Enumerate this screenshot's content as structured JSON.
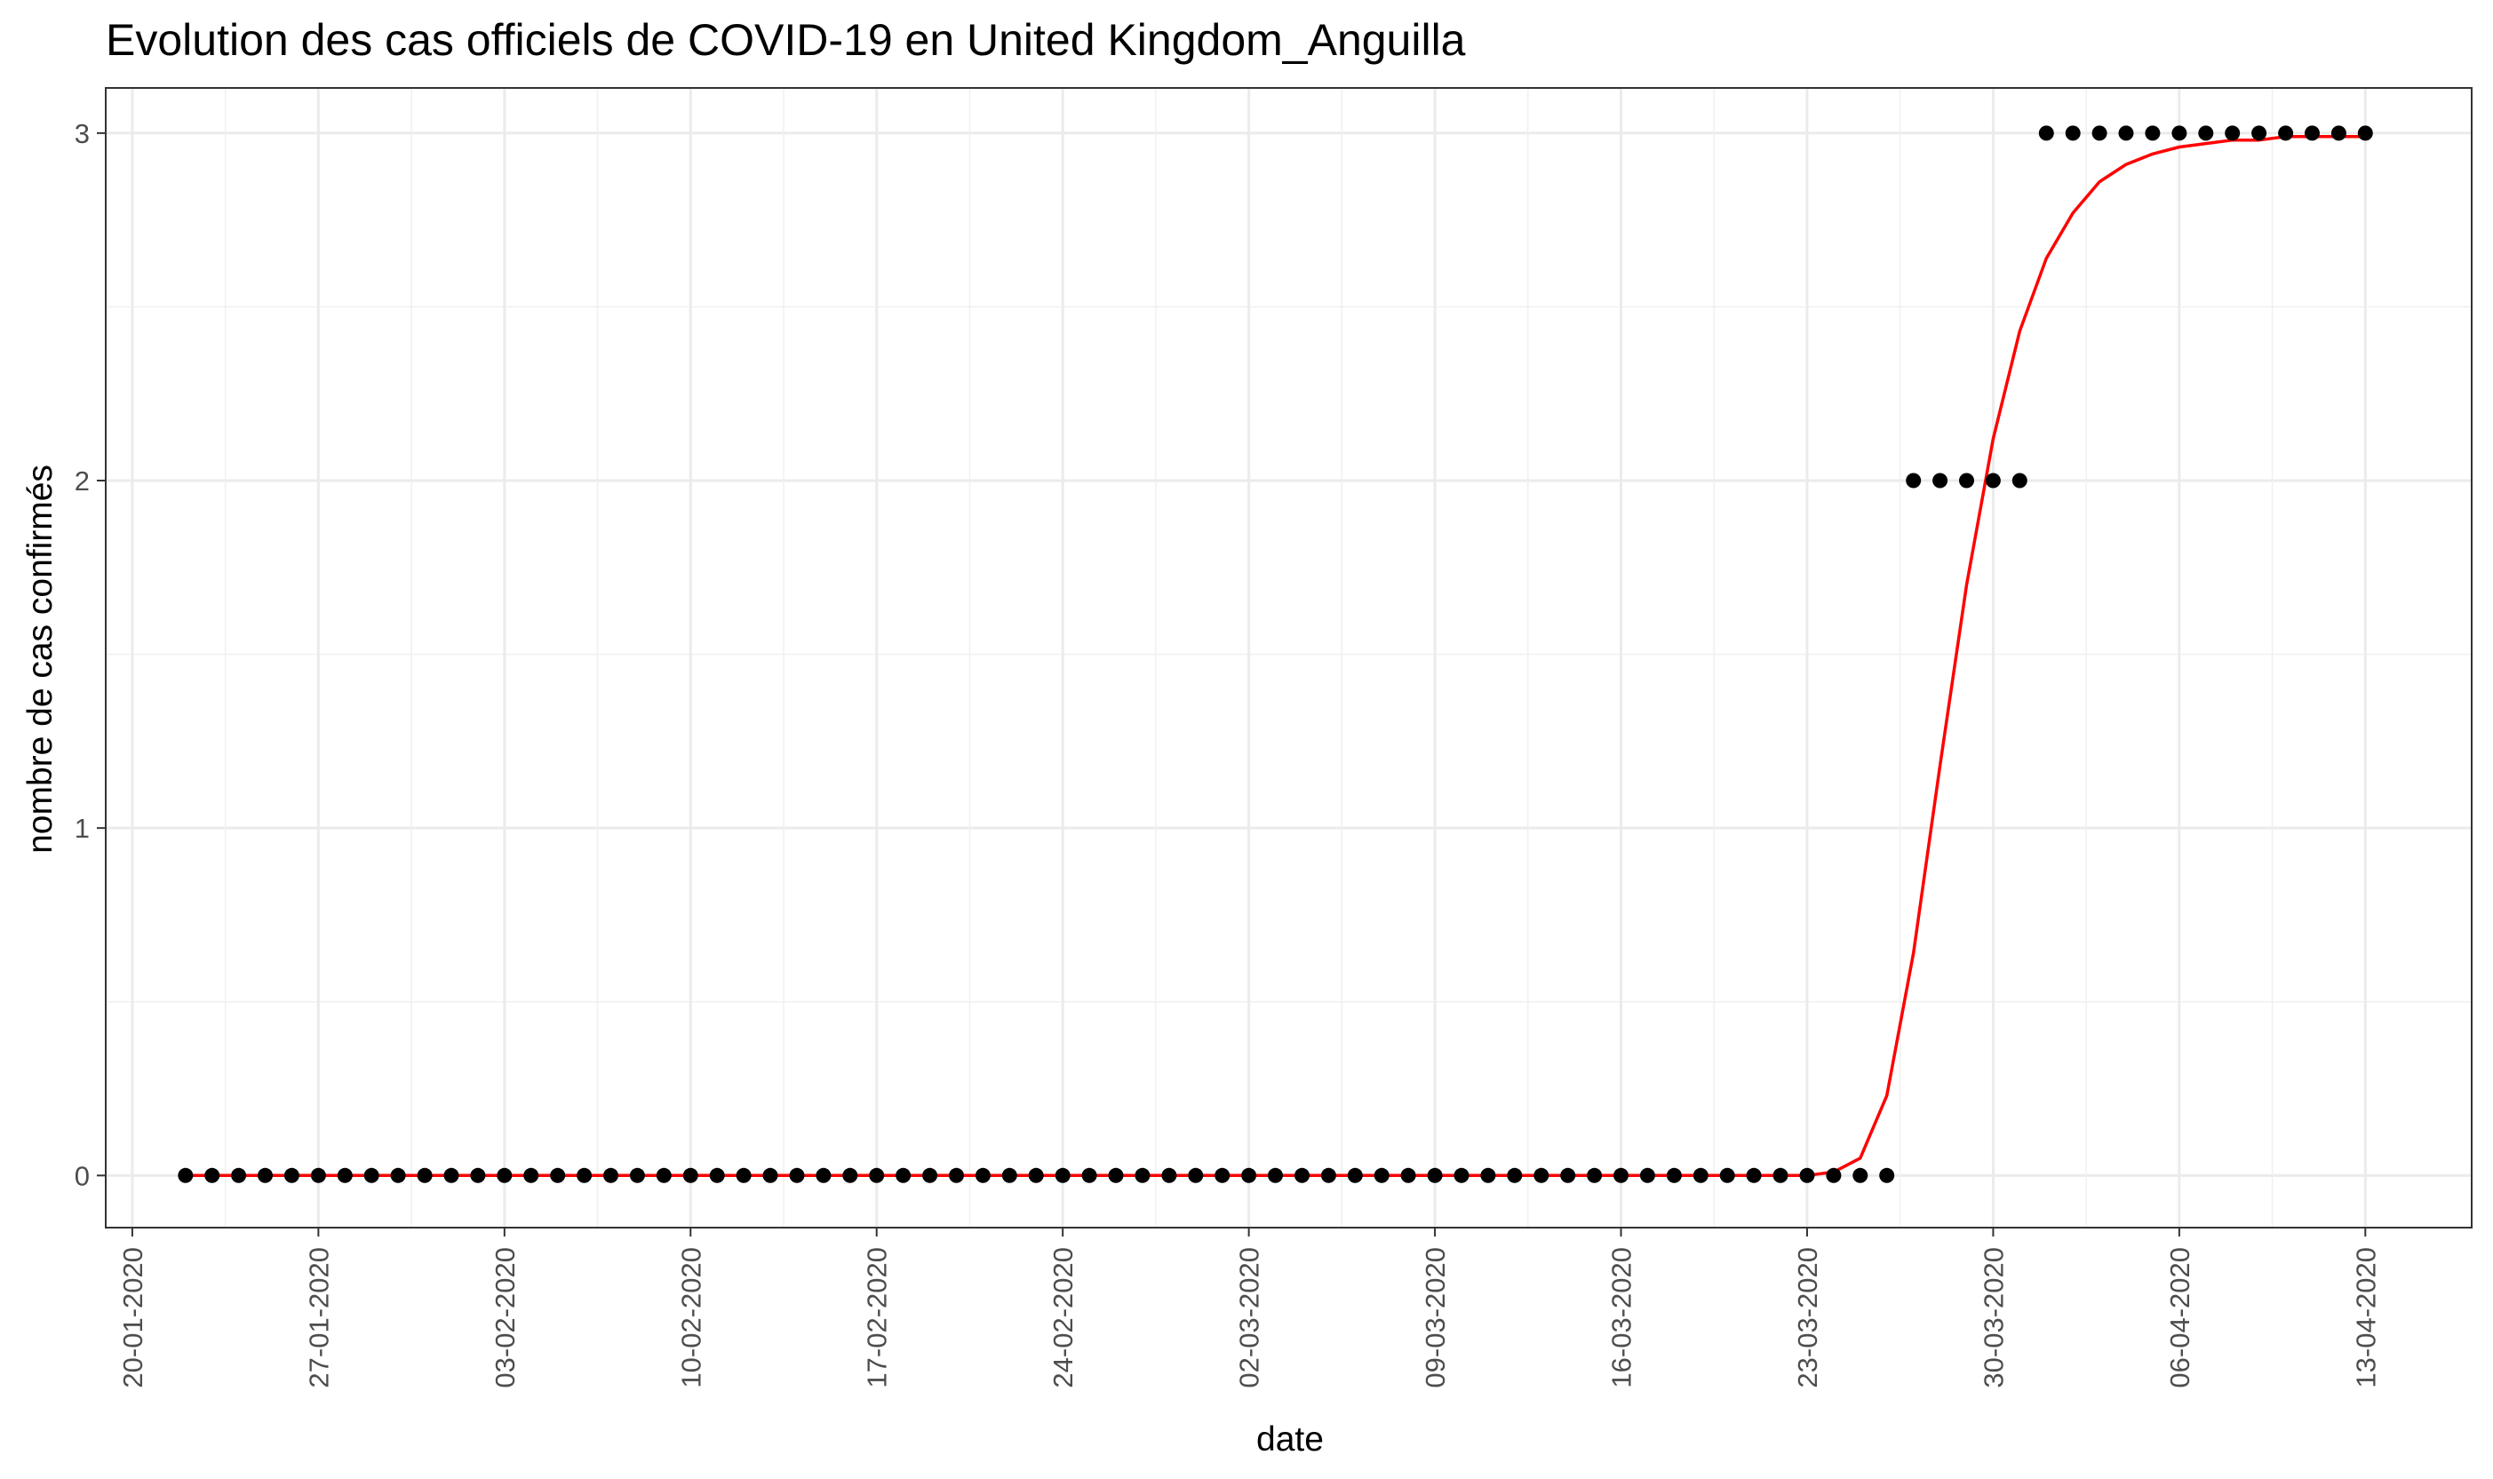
{
  "chart_data": {
    "type": "scatter",
    "title": "Evolution des cas officiels de COVID-19 en United Kingdom_Anguilla",
    "xlabel": "date",
    "ylabel": "nombre de cas confirmés",
    "x_tick_labels": [
      "20-01-2020",
      "27-01-2020",
      "03-02-2020",
      "10-02-2020",
      "17-02-2020",
      "24-02-2020",
      "02-03-2020",
      "09-03-2020",
      "16-03-2020",
      "23-03-2020",
      "30-03-2020",
      "06-04-2020",
      "13-04-2020"
    ],
    "y_tick_labels": [
      "0",
      "1",
      "2",
      "3"
    ],
    "ylim": [
      -0.15,
      3.13
    ],
    "xlim": [
      "2020-01-19",
      "2020-04-17"
    ],
    "grid": true,
    "series": [
      {
        "kind": "points",
        "color": "#000000",
        "points": [
          {
            "x": "2020-01-22",
            "y": 0
          },
          {
            "x": "2020-01-23",
            "y": 0
          },
          {
            "x": "2020-01-24",
            "y": 0
          },
          {
            "x": "2020-01-25",
            "y": 0
          },
          {
            "x": "2020-01-26",
            "y": 0
          },
          {
            "x": "2020-01-27",
            "y": 0
          },
          {
            "x": "2020-01-28",
            "y": 0
          },
          {
            "x": "2020-01-29",
            "y": 0
          },
          {
            "x": "2020-01-30",
            "y": 0
          },
          {
            "x": "2020-01-31",
            "y": 0
          },
          {
            "x": "2020-02-01",
            "y": 0
          },
          {
            "x": "2020-02-02",
            "y": 0
          },
          {
            "x": "2020-02-03",
            "y": 0
          },
          {
            "x": "2020-02-04",
            "y": 0
          },
          {
            "x": "2020-02-05",
            "y": 0
          },
          {
            "x": "2020-02-06",
            "y": 0
          },
          {
            "x": "2020-02-07",
            "y": 0
          },
          {
            "x": "2020-02-08",
            "y": 0
          },
          {
            "x": "2020-02-09",
            "y": 0
          },
          {
            "x": "2020-02-10",
            "y": 0
          },
          {
            "x": "2020-02-11",
            "y": 0
          },
          {
            "x": "2020-02-12",
            "y": 0
          },
          {
            "x": "2020-02-13",
            "y": 0
          },
          {
            "x": "2020-02-14",
            "y": 0
          },
          {
            "x": "2020-02-15",
            "y": 0
          },
          {
            "x": "2020-02-16",
            "y": 0
          },
          {
            "x": "2020-02-17",
            "y": 0
          },
          {
            "x": "2020-02-18",
            "y": 0
          },
          {
            "x": "2020-02-19",
            "y": 0
          },
          {
            "x": "2020-02-20",
            "y": 0
          },
          {
            "x": "2020-02-21",
            "y": 0
          },
          {
            "x": "2020-02-22",
            "y": 0
          },
          {
            "x": "2020-02-23",
            "y": 0
          },
          {
            "x": "2020-02-24",
            "y": 0
          },
          {
            "x": "2020-02-25",
            "y": 0
          },
          {
            "x": "2020-02-26",
            "y": 0
          },
          {
            "x": "2020-02-27",
            "y": 0
          },
          {
            "x": "2020-02-28",
            "y": 0
          },
          {
            "x": "2020-02-29",
            "y": 0
          },
          {
            "x": "2020-03-01",
            "y": 0
          },
          {
            "x": "2020-03-02",
            "y": 0
          },
          {
            "x": "2020-03-03",
            "y": 0
          },
          {
            "x": "2020-03-04",
            "y": 0
          },
          {
            "x": "2020-03-05",
            "y": 0
          },
          {
            "x": "2020-03-06",
            "y": 0
          },
          {
            "x": "2020-03-07",
            "y": 0
          },
          {
            "x": "2020-03-08",
            "y": 0
          },
          {
            "x": "2020-03-09",
            "y": 0
          },
          {
            "x": "2020-03-10",
            "y": 0
          },
          {
            "x": "2020-03-11",
            "y": 0
          },
          {
            "x": "2020-03-12",
            "y": 0
          },
          {
            "x": "2020-03-13",
            "y": 0
          },
          {
            "x": "2020-03-14",
            "y": 0
          },
          {
            "x": "2020-03-15",
            "y": 0
          },
          {
            "x": "2020-03-16",
            "y": 0
          },
          {
            "x": "2020-03-17",
            "y": 0
          },
          {
            "x": "2020-03-18",
            "y": 0
          },
          {
            "x": "2020-03-19",
            "y": 0
          },
          {
            "x": "2020-03-20",
            "y": 0
          },
          {
            "x": "2020-03-21",
            "y": 0
          },
          {
            "x": "2020-03-22",
            "y": 0
          },
          {
            "x": "2020-03-23",
            "y": 0
          },
          {
            "x": "2020-03-24",
            "y": 0
          },
          {
            "x": "2020-03-25",
            "y": 0
          },
          {
            "x": "2020-03-26",
            "y": 0
          },
          {
            "x": "2020-03-27",
            "y": 2
          },
          {
            "x": "2020-03-28",
            "y": 2
          },
          {
            "x": "2020-03-29",
            "y": 2
          },
          {
            "x": "2020-03-30",
            "y": 2
          },
          {
            "x": "2020-03-31",
            "y": 2
          },
          {
            "x": "2020-04-01",
            "y": 3
          },
          {
            "x": "2020-04-02",
            "y": 3
          },
          {
            "x": "2020-04-03",
            "y": 3
          },
          {
            "x": "2020-04-04",
            "y": 3
          },
          {
            "x": "2020-04-05",
            "y": 3
          },
          {
            "x": "2020-04-06",
            "y": 3
          },
          {
            "x": "2020-04-07",
            "y": 3
          },
          {
            "x": "2020-04-08",
            "y": 3
          },
          {
            "x": "2020-04-09",
            "y": 3
          },
          {
            "x": "2020-04-10",
            "y": 3
          },
          {
            "x": "2020-04-11",
            "y": 3
          },
          {
            "x": "2020-04-12",
            "y": 3
          },
          {
            "x": "2020-04-13",
            "y": 3
          }
        ]
      },
      {
        "kind": "line",
        "color": "#ff0000",
        "points": [
          {
            "x": "2020-01-22",
            "y": 0
          },
          {
            "x": "2020-03-22",
            "y": 0
          },
          {
            "x": "2020-03-23",
            "y": 0
          },
          {
            "x": "2020-03-24",
            "y": 0.01
          },
          {
            "x": "2020-03-25",
            "y": 0.05
          },
          {
            "x": "2020-03-26",
            "y": 0.23
          },
          {
            "x": "2020-03-27",
            "y": 0.64
          },
          {
            "x": "2020-03-28",
            "y": 1.18
          },
          {
            "x": "2020-03-29",
            "y": 1.7
          },
          {
            "x": "2020-03-30",
            "y": 2.12
          },
          {
            "x": "2020-03-31",
            "y": 2.43
          },
          {
            "x": "2020-04-01",
            "y": 2.64
          },
          {
            "x": "2020-04-02",
            "y": 2.77
          },
          {
            "x": "2020-04-03",
            "y": 2.86
          },
          {
            "x": "2020-04-04",
            "y": 2.91
          },
          {
            "x": "2020-04-05",
            "y": 2.94
          },
          {
            "x": "2020-04-06",
            "y": 2.96
          },
          {
            "x": "2020-04-07",
            "y": 2.97
          },
          {
            "x": "2020-04-08",
            "y": 2.98
          },
          {
            "x": "2020-04-09",
            "y": 2.98
          },
          {
            "x": "2020-04-10",
            "y": 2.99
          },
          {
            "x": "2020-04-11",
            "y": 2.99
          },
          {
            "x": "2020-04-12",
            "y": 2.99
          },
          {
            "x": "2020-04-13",
            "y": 2.99
          }
        ]
      }
    ]
  }
}
